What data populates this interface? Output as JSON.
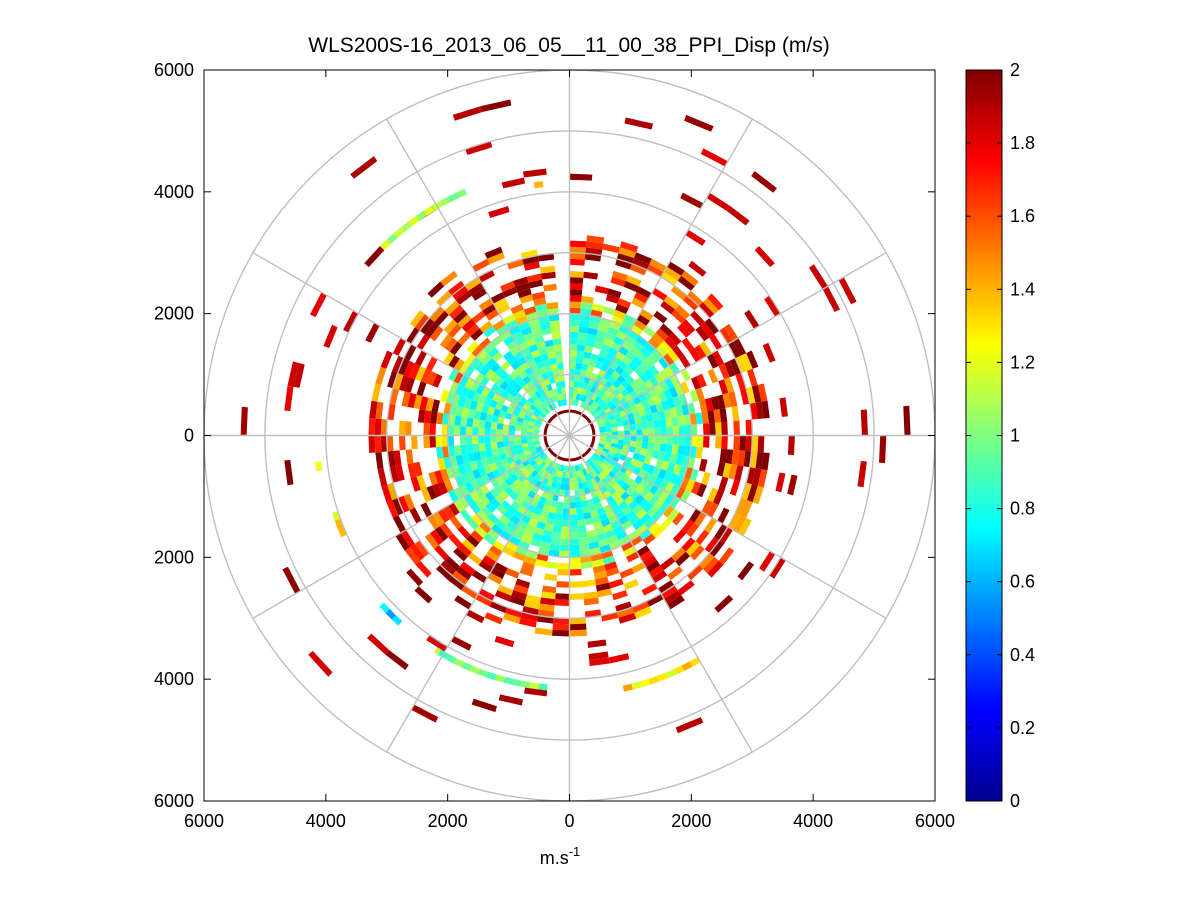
{
  "chart_data": {
    "type": "heatmap",
    "projection": "polar-ppi",
    "title": "WLS200S-16_2013_06_05__11_00_38_PPI_Disp (m/s)",
    "xlabel": "m.s",
    "xlabel_superscript": "-1",
    "ylabel": "",
    "xlim": [
      -6000,
      6000
    ],
    "ylim": [
      -6000,
      6000
    ],
    "x_ticks": [
      -6000,
      -4000,
      -2000,
      0,
      2000,
      4000,
      6000
    ],
    "x_tick_labels": [
      "6000",
      "4000",
      "2000",
      "0",
      "2000",
      "4000",
      "6000"
    ],
    "y_ticks": [
      6000,
      4000,
      2000,
      0,
      -2000,
      -4000,
      -6000
    ],
    "y_tick_labels": [
      "6000",
      "4000",
      "2000",
      "0",
      "2000",
      "4000",
      "6000"
    ],
    "polar_grid": {
      "ring_radii_m": [
        1000,
        2000,
        3000,
        4000,
        5000,
        6000
      ],
      "spoke_angles_deg": [
        0,
        30,
        60,
        90,
        120,
        150,
        180,
        210,
        240,
        270,
        300,
        330
      ]
    },
    "colorbar": {
      "colormap": "jet",
      "range": [
        0,
        2
      ],
      "ticks": [
        0,
        0.2,
        0.4,
        0.6,
        0.8,
        1,
        1.2,
        1.4,
        1.6,
        1.8,
        2
      ],
      "tick_labels": [
        "0",
        "0.2",
        "0.4",
        "0.6",
        "0.8",
        "1",
        "1.2",
        "1.4",
        "1.6",
        "1.8",
        "2"
      ]
    },
    "data_summary": {
      "unit": "m/s",
      "blind_zone_radius_m": 400,
      "range_gate_step_m": 100,
      "azimuth_step_deg": 5,
      "missing_sector_deg": [
        -5,
        0
      ],
      "dense_core": {
        "r_min": 500,
        "r_max": 2000,
        "typical_value": 0.9
      },
      "transition_ring": {
        "r_min": 1900,
        "r_max": 2200,
        "typical_value": 1.2
      },
      "outer_ring": {
        "r_min": 2200,
        "r_max": 3300,
        "typical_value": 1.85
      },
      "sparse_outer": {
        "r_min": 3300,
        "r_max": 5600,
        "typical_value": 1.9
      },
      "arcs": [
        {
          "radius_m": 4300,
          "az_from_deg": 315,
          "az_to_deg": 337,
          "value": 1.05
        },
        {
          "radius_m": 4100,
          "az_from_deg": 352,
          "az_to_deg": 354,
          "value": 1.4
        },
        {
          "radius_m": 4200,
          "az_from_deg": 150,
          "az_to_deg": 168,
          "value": 1.3
        },
        {
          "radius_m": 4100,
          "az_from_deg": 185,
          "az_to_deg": 212,
          "value": 1.0
        },
        {
          "radius_m": 4100,
          "az_from_deg": 222,
          "az_to_deg": 228,
          "value": 0.7
        },
        {
          "radius_m": 4000,
          "az_from_deg": 246,
          "az_to_deg": 252,
          "value": 1.25
        },
        {
          "radius_m": 4100,
          "az_from_deg": 262,
          "az_to_deg": 264,
          "value": 1.2
        }
      ]
    }
  }
}
